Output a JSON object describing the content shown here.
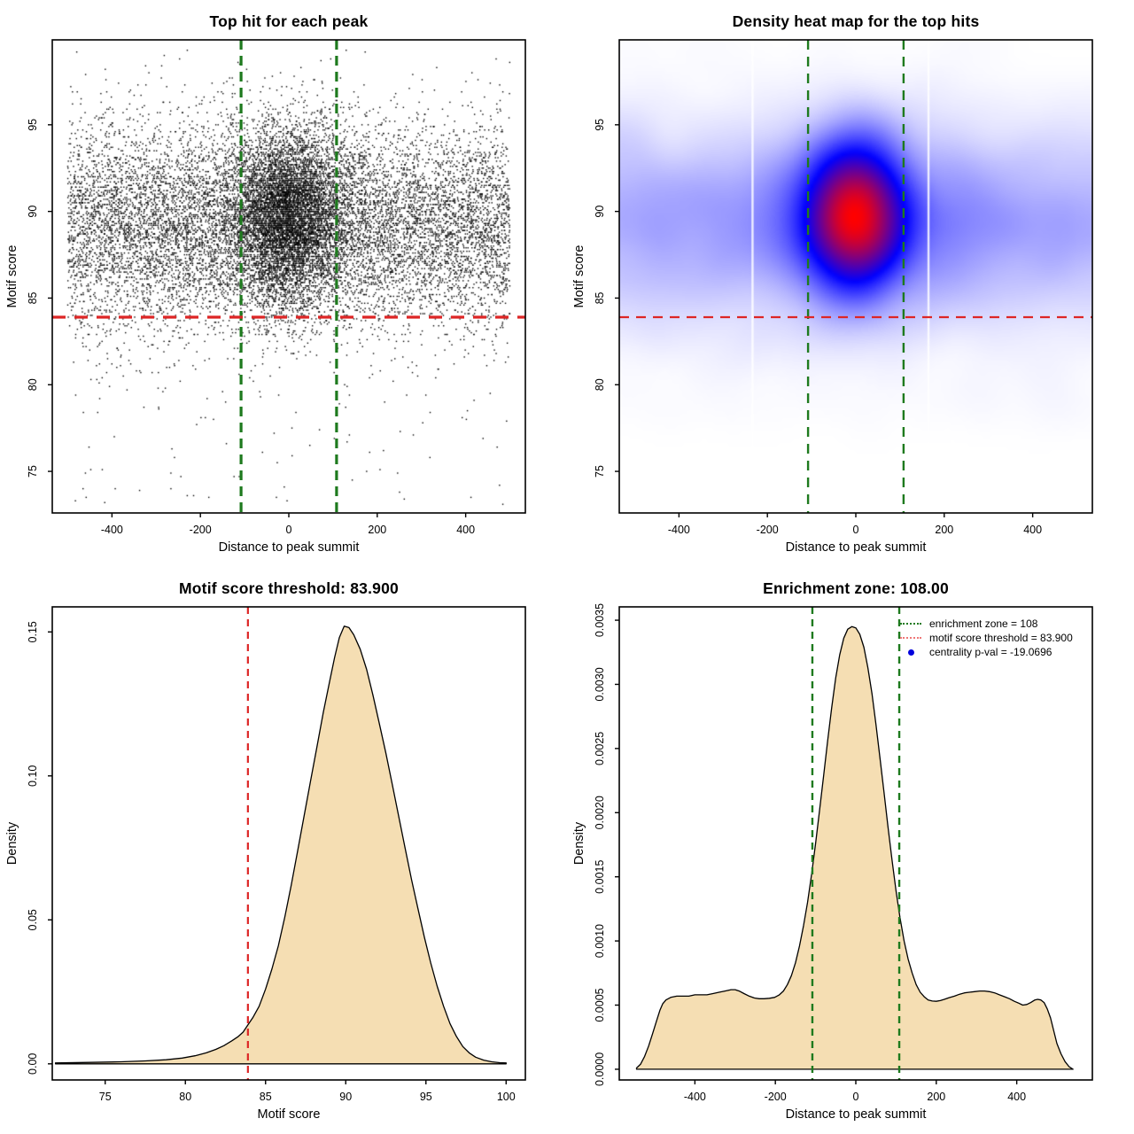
{
  "colors": {
    "green_line": "#1e7a1e",
    "red_line": "#dd2626",
    "wheat_fill": "#f5deb3",
    "curve_stroke": "#000000",
    "point_color": "#000000",
    "legend_red": "#ee7777",
    "legend_blue": "#0000dd",
    "heat_colormap": [
      "#ffffff",
      "#0000ff",
      "#ff0000"
    ]
  },
  "chart_data": [
    {
      "id": "top-left",
      "type": "scatter",
      "title": "Top hit for each peak",
      "xlabel": "Distance to peak summit",
      "ylabel": "Motif score",
      "xlim": [
        -535,
        535
      ],
      "ylim": [
        72.6,
        99.9
      ],
      "xticks": [
        "-400",
        "-200",
        "0",
        "200",
        "400"
      ],
      "yticks": [
        "75",
        "80",
        "85",
        "90",
        "95"
      ],
      "grid": false,
      "vlines": {
        "x": [
          -108,
          108
        ],
        "style": "dashed",
        "width": 3.2,
        "dash": "11,7"
      },
      "hline": {
        "y": 83.9,
        "style": "dashed",
        "width": 3.2,
        "dash": "15,10"
      },
      "points_model": {
        "seed": 11,
        "y_quantization": 0.1,
        "background": {
          "n": 10500,
          "x_range": [
            -500,
            500
          ],
          "y_mean": 89.2,
          "y_sd": 2.95,
          "tail_frac": 0.013,
          "tail_range": [
            73,
            84.5
          ]
        },
        "halo": {
          "n": 1800,
          "x_mean": 0,
          "x_sd": 135,
          "y_mean": 89.4,
          "y_sd": 2.7
        },
        "cluster": {
          "n": 5200,
          "x_mean": -3,
          "x_sd": 57,
          "y_mean": 89.75,
          "y_sd": 2.45
        }
      }
    },
    {
      "id": "top-right",
      "type": "heatmap",
      "title": "Density heat map for the top hits",
      "xlabel": "Distance to peak summit",
      "ylabel": "Motif score",
      "xlim": [
        -535,
        535
      ],
      "ylim": [
        72.6,
        99.9
      ],
      "xticks": [
        "-400",
        "-200",
        "0",
        "200",
        "400"
      ],
      "yticks": [
        "75",
        "80",
        "85",
        "90",
        "95"
      ],
      "grid": false,
      "hotspot": {
        "x": 0,
        "y": 90
      },
      "gamma": 0.72,
      "artifact_stripes_x": [
        -234,
        164
      ],
      "vlines": {
        "x": [
          -108,
          108
        ],
        "style": "dashed",
        "width": 2.4,
        "dash": "11,8"
      },
      "hline": {
        "y": 83.9,
        "style": "dashed",
        "width": 2.2,
        "dash": "11,8"
      },
      "points_model": {
        "seed": 99,
        "background": {
          "n": 5200,
          "x_range": [
            -525,
            525
          ],
          "y_mean": 89.2,
          "y_sd": 3.0,
          "tail_frac": 0.012,
          "tail_range": [
            78,
            84.5
          ]
        },
        "halo": {
          "n": 2600,
          "x_mean": 0,
          "x_sd": 132,
          "y_mean": 89.5,
          "y_sd": 2.65
        },
        "cluster": {
          "n": 5200,
          "x_mean": -3,
          "x_sd": 55,
          "y_mean": 89.8,
          "y_sd": 2.3
        }
      }
    },
    {
      "id": "bottom-left",
      "type": "area",
      "title": "Motif score threshold: 83.900",
      "xlabel": "Motif score",
      "ylabel": "Density",
      "xlim": [
        71.7,
        101.2
      ],
      "ylim": [
        -0.0056,
        0.1587
      ],
      "xticks": [
        "75",
        "80",
        "85",
        "90",
        "95",
        "100"
      ],
      "yticks": [
        "0.00",
        "0.05",
        "0.10",
        "0.15"
      ],
      "grid": false,
      "threshold": 83.9,
      "vlines": {
        "x": [
          83.9
        ],
        "color": "red",
        "style": "dashed",
        "width": 2.2,
        "dash": "8,6"
      },
      "peak": {
        "x": 89.9,
        "density": 0.152
      },
      "curve": [
        [
          71.9,
          0.0003
        ],
        [
          74,
          0.0005
        ],
        [
          76,
          0.0007
        ],
        [
          77.5,
          0.001
        ],
        [
          78.8,
          0.0014
        ],
        [
          79.8,
          0.002
        ],
        [
          80.6,
          0.0028
        ],
        [
          81.3,
          0.0038
        ],
        [
          81.9,
          0.005
        ],
        [
          82.4,
          0.0063
        ],
        [
          82.9,
          0.008
        ],
        [
          83.3,
          0.0095
        ],
        [
          83.6,
          0.011
        ],
        [
          83.9,
          0.0135
        ],
        [
          84.2,
          0.016
        ],
        [
          84.6,
          0.02
        ],
        [
          85,
          0.026
        ],
        [
          85.4,
          0.033
        ],
        [
          85.8,
          0.041
        ],
        [
          86.2,
          0.051
        ],
        [
          86.6,
          0.062
        ],
        [
          87,
          0.074
        ],
        [
          87.4,
          0.086
        ],
        [
          87.8,
          0.098
        ],
        [
          88.2,
          0.11
        ],
        [
          88.6,
          0.122
        ],
        [
          89,
          0.133
        ],
        [
          89.3,
          0.141
        ],
        [
          89.6,
          0.148
        ],
        [
          89.9,
          0.152
        ],
        [
          90.2,
          0.1515
        ],
        [
          90.5,
          0.149
        ],
        [
          90.9,
          0.144
        ],
        [
          91.3,
          0.137
        ],
        [
          91.7,
          0.128
        ],
        [
          92.1,
          0.118
        ],
        [
          92.5,
          0.108
        ],
        [
          92.9,
          0.097
        ],
        [
          93.3,
          0.086
        ],
        [
          93.7,
          0.075
        ],
        [
          94.1,
          0.064
        ],
        [
          94.5,
          0.054
        ],
        [
          94.9,
          0.044
        ],
        [
          95.3,
          0.035
        ],
        [
          95.7,
          0.027
        ],
        [
          96.1,
          0.02
        ],
        [
          96.5,
          0.014
        ],
        [
          96.9,
          0.0095
        ],
        [
          97.3,
          0.006
        ],
        [
          97.7,
          0.0038
        ],
        [
          98.1,
          0.0023
        ],
        [
          98.6,
          0.0013
        ],
        [
          99.1,
          0.0007
        ],
        [
          99.6,
          0.0004
        ],
        [
          100,
          0.0003
        ]
      ]
    },
    {
      "id": "bottom-right",
      "type": "area",
      "title": "Enrichment zone: 108.00",
      "xlabel": "Distance to peak summit",
      "ylabel": "Density",
      "xlim": [
        -588,
        588
      ],
      "ylim": [
        -8.35e-05,
        0.003604
      ],
      "xticks": [
        "-400",
        "-200",
        "0",
        "200",
        "400"
      ],
      "yticks": [
        "0.0000",
        "0.0005",
        "0.0010",
        "0.0015",
        "0.0020",
        "0.0025",
        "0.0030",
        "0.0035"
      ],
      "grid": false,
      "enrichment_zone": 108,
      "vlines": {
        "x": [
          -108,
          108
        ],
        "color": "green",
        "style": "dashed",
        "width": 2.4,
        "dash": "8,6"
      },
      "peak": {
        "x": -10,
        "density": 0.00345
      },
      "legend": {
        "items": [
          {
            "sample": "green-dotted-line",
            "label": "enrichment zone = 108"
          },
          {
            "sample": "red-dotted-line",
            "label": "motif score threshold = 83.900"
          },
          {
            "sample": "blue-dot",
            "label": "centrality p-val = -19.0696"
          }
        ]
      },
      "curve": [
        [
          -545,
          1e-05
        ],
        [
          -535,
          4e-05
        ],
        [
          -525,
          0.0001
        ],
        [
          -515,
          0.00018
        ],
        [
          -505,
          0.00028
        ],
        [
          -495,
          0.00038
        ],
        [
          -487,
          0.00046
        ],
        [
          -480,
          0.00051
        ],
        [
          -472,
          0.00054
        ],
        [
          -460,
          0.00056
        ],
        [
          -445,
          0.00057
        ],
        [
          -430,
          0.00057
        ],
        [
          -415,
          0.00057
        ],
        [
          -400,
          0.00058
        ],
        [
          -385,
          0.00058
        ],
        [
          -370,
          0.00058
        ],
        [
          -355,
          0.00059
        ],
        [
          -340,
          0.0006
        ],
        [
          -325,
          0.00061
        ],
        [
          -310,
          0.00062
        ],
        [
          -300,
          0.00062
        ],
        [
          -290,
          0.00061
        ],
        [
          -278,
          0.00059
        ],
        [
          -265,
          0.00057
        ],
        [
          -252,
          0.000555
        ],
        [
          -240,
          0.00055
        ],
        [
          -228,
          0.00055
        ],
        [
          -215,
          0.000553
        ],
        [
          -202,
          0.00056
        ],
        [
          -190,
          0.00058
        ],
        [
          -180,
          0.00061
        ],
        [
          -170,
          0.00066
        ],
        [
          -160,
          0.00073
        ],
        [
          -150,
          0.00083
        ],
        [
          -140,
          0.00096
        ],
        [
          -130,
          0.00112
        ],
        [
          -120,
          0.0013
        ],
        [
          -110,
          0.00152
        ],
        [
          -100,
          0.00176
        ],
        [
          -90,
          0.00202
        ],
        [
          -80,
          0.00229
        ],
        [
          -70,
          0.00256
        ],
        [
          -60,
          0.00282
        ],
        [
          -50,
          0.00305
        ],
        [
          -40,
          0.00323
        ],
        [
          -30,
          0.00336
        ],
        [
          -20,
          0.00343
        ],
        [
          -10,
          0.00345
        ],
        [
          0,
          0.00344
        ],
        [
          10,
          0.00339
        ],
        [
          20,
          0.00329
        ],
        [
          30,
          0.00313
        ],
        [
          40,
          0.00293
        ],
        [
          50,
          0.00269
        ],
        [
          60,
          0.00243
        ],
        [
          70,
          0.00216
        ],
        [
          80,
          0.00189
        ],
        [
          90,
          0.00163
        ],
        [
          100,
          0.00139
        ],
        [
          110,
          0.00118
        ],
        [
          120,
          0.001
        ],
        [
          130,
          0.00086
        ],
        [
          140,
          0.00075
        ],
        [
          150,
          0.00066
        ],
        [
          160,
          0.0006
        ],
        [
          170,
          0.000565
        ],
        [
          180,
          0.00054
        ],
        [
          190,
          0.000532
        ],
        [
          200,
          0.00053
        ],
        [
          210,
          0.000535
        ],
        [
          220,
          0.000545
        ],
        [
          232,
          0.000558
        ],
        [
          245,
          0.00057
        ],
        [
          258,
          0.000585
        ],
        [
          270,
          0.000595
        ],
        [
          282,
          0.0006
        ],
        [
          295,
          0.000605
        ],
        [
          308,
          0.00061
        ],
        [
          320,
          0.00061
        ],
        [
          332,
          0.000605
        ],
        [
          345,
          0.000595
        ],
        [
          357,
          0.00058
        ],
        [
          370,
          0.000565
        ],
        [
          382,
          0.00055
        ],
        [
          394,
          0.00053
        ],
        [
          405,
          0.000515
        ],
        [
          415,
          0.0005
        ],
        [
          425,
          0.000505
        ],
        [
          435,
          0.00052
        ],
        [
          445,
          0.00054
        ],
        [
          452,
          0.000545
        ],
        [
          460,
          0.00054
        ],
        [
          468,
          0.00052
        ],
        [
          476,
          0.00047
        ],
        [
          484,
          0.0004
        ],
        [
          492,
          0.0003
        ],
        [
          500,
          0.0002
        ],
        [
          510,
          0.00012
        ],
        [
          520,
          6e-05
        ],
        [
          530,
          2e-05
        ],
        [
          540,
          0
        ]
      ]
    }
  ]
}
